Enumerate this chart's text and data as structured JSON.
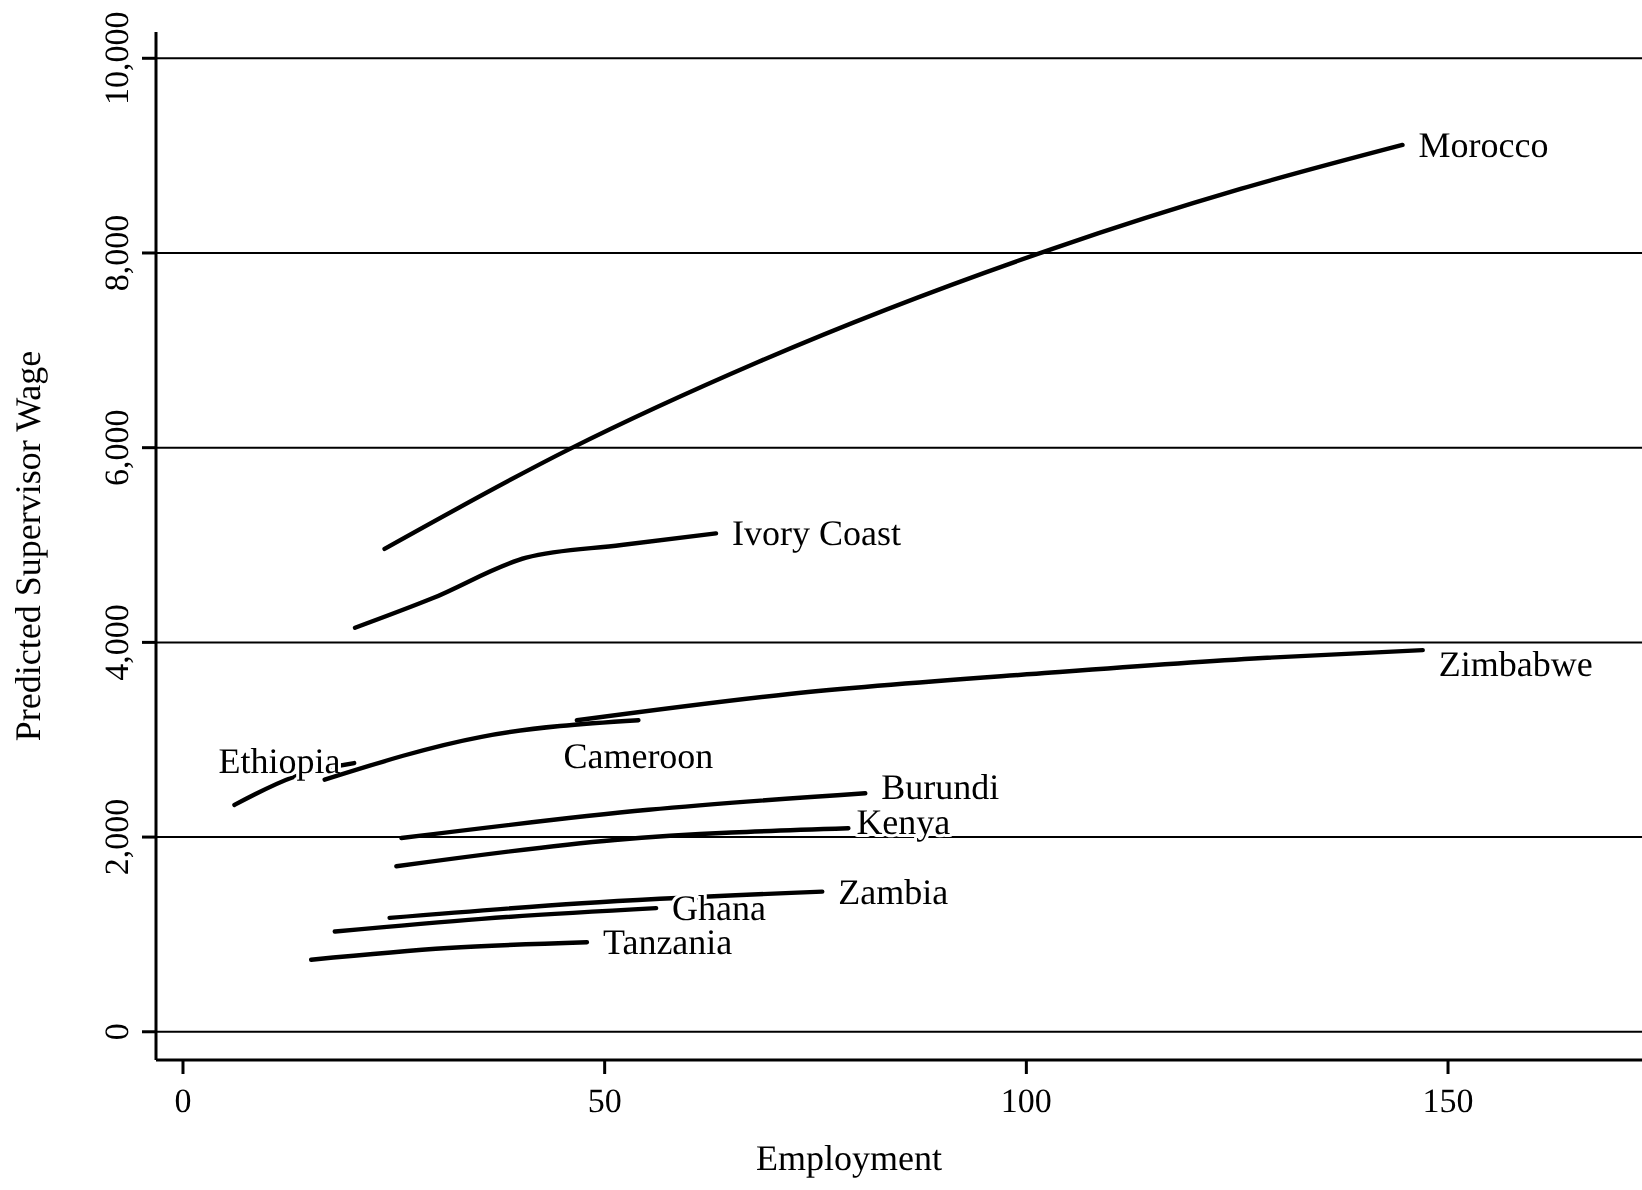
{
  "chart_data": {
    "type": "line",
    "xlabel": "Employment",
    "ylabel": "Predicted Supervisor Wage",
    "xlim": [
      -3.2,
      173
    ],
    "xticks": [
      0,
      50,
      100,
      150
    ],
    "ylim": [
      -290,
      10270
    ],
    "yticks": [
      0,
      {
        "value": 2000,
        "label": "2,000"
      },
      {
        "value": 4000,
        "label": "4,000"
      },
      {
        "value": 6000,
        "label": "6,000"
      },
      {
        "value": 8000,
        "label": "8,000"
      },
      {
        "value": 10000,
        "label": "10,000"
      }
    ],
    "grid": "y",
    "legend": false,
    "marker": "none",
    "line_style": "solid",
    "series": [
      {
        "name": "Morocco",
        "color": "#000000",
        "x": [
          23.9,
          45.7,
          68.2,
          103,
          125.5,
          144.6
        ],
        "values": [
          4960,
          5980,
          6880,
          8040,
          8660,
          9110
        ]
      },
      {
        "name": "Ivory Coast",
        "color": "#000000",
        "x": [
          20.4,
          29.5,
          40.7,
          52,
          63.2
        ],
        "values": [
          4150,
          4450,
          4870,
          5000,
          5120
        ]
      },
      {
        "name": "Zimbabwe",
        "color": "#000000",
        "x": [
          46.7,
          71.9,
          103,
          128,
          147
        ],
        "values": [
          3200,
          3470,
          3690,
          3840,
          3920
        ]
      },
      {
        "name": "Ethiopia",
        "color": "#000000",
        "x": [
          6.1,
          13.2,
          20.3
        ],
        "values": [
          2330,
          2620,
          2760
        ]
      },
      {
        "name": "Cameroon",
        "color": "#000000",
        "x": [
          16.8,
          35.4,
          54
        ],
        "values": [
          2590,
          3030,
          3200
        ]
      },
      {
        "name": "Burundi",
        "color": "#000000",
        "x": [
          25.9,
          55.2,
          80.9
        ],
        "values": [
          1990,
          2280,
          2450
        ]
      },
      {
        "name": "Kenya",
        "color": "#000000",
        "x": [
          25.3,
          51.2,
          78.9
        ],
        "values": [
          1700,
          1970,
          2090
        ]
      },
      {
        "name": "Zambia",
        "color": "#000000",
        "x": [
          24.5,
          47.3,
          75.8
        ],
        "values": [
          1170,
          1320,
          1440
        ]
      },
      {
        "name": "Ghana",
        "color": "#000000",
        "x": [
          18,
          35.4,
          56.1
        ],
        "values": [
          1030,
          1160,
          1270
        ]
      },
      {
        "name": "Tanzania",
        "color": "#000000",
        "x": [
          15.2,
          31.4,
          47.9
        ],
        "values": [
          740,
          860,
          920
        ]
      }
    ]
  }
}
